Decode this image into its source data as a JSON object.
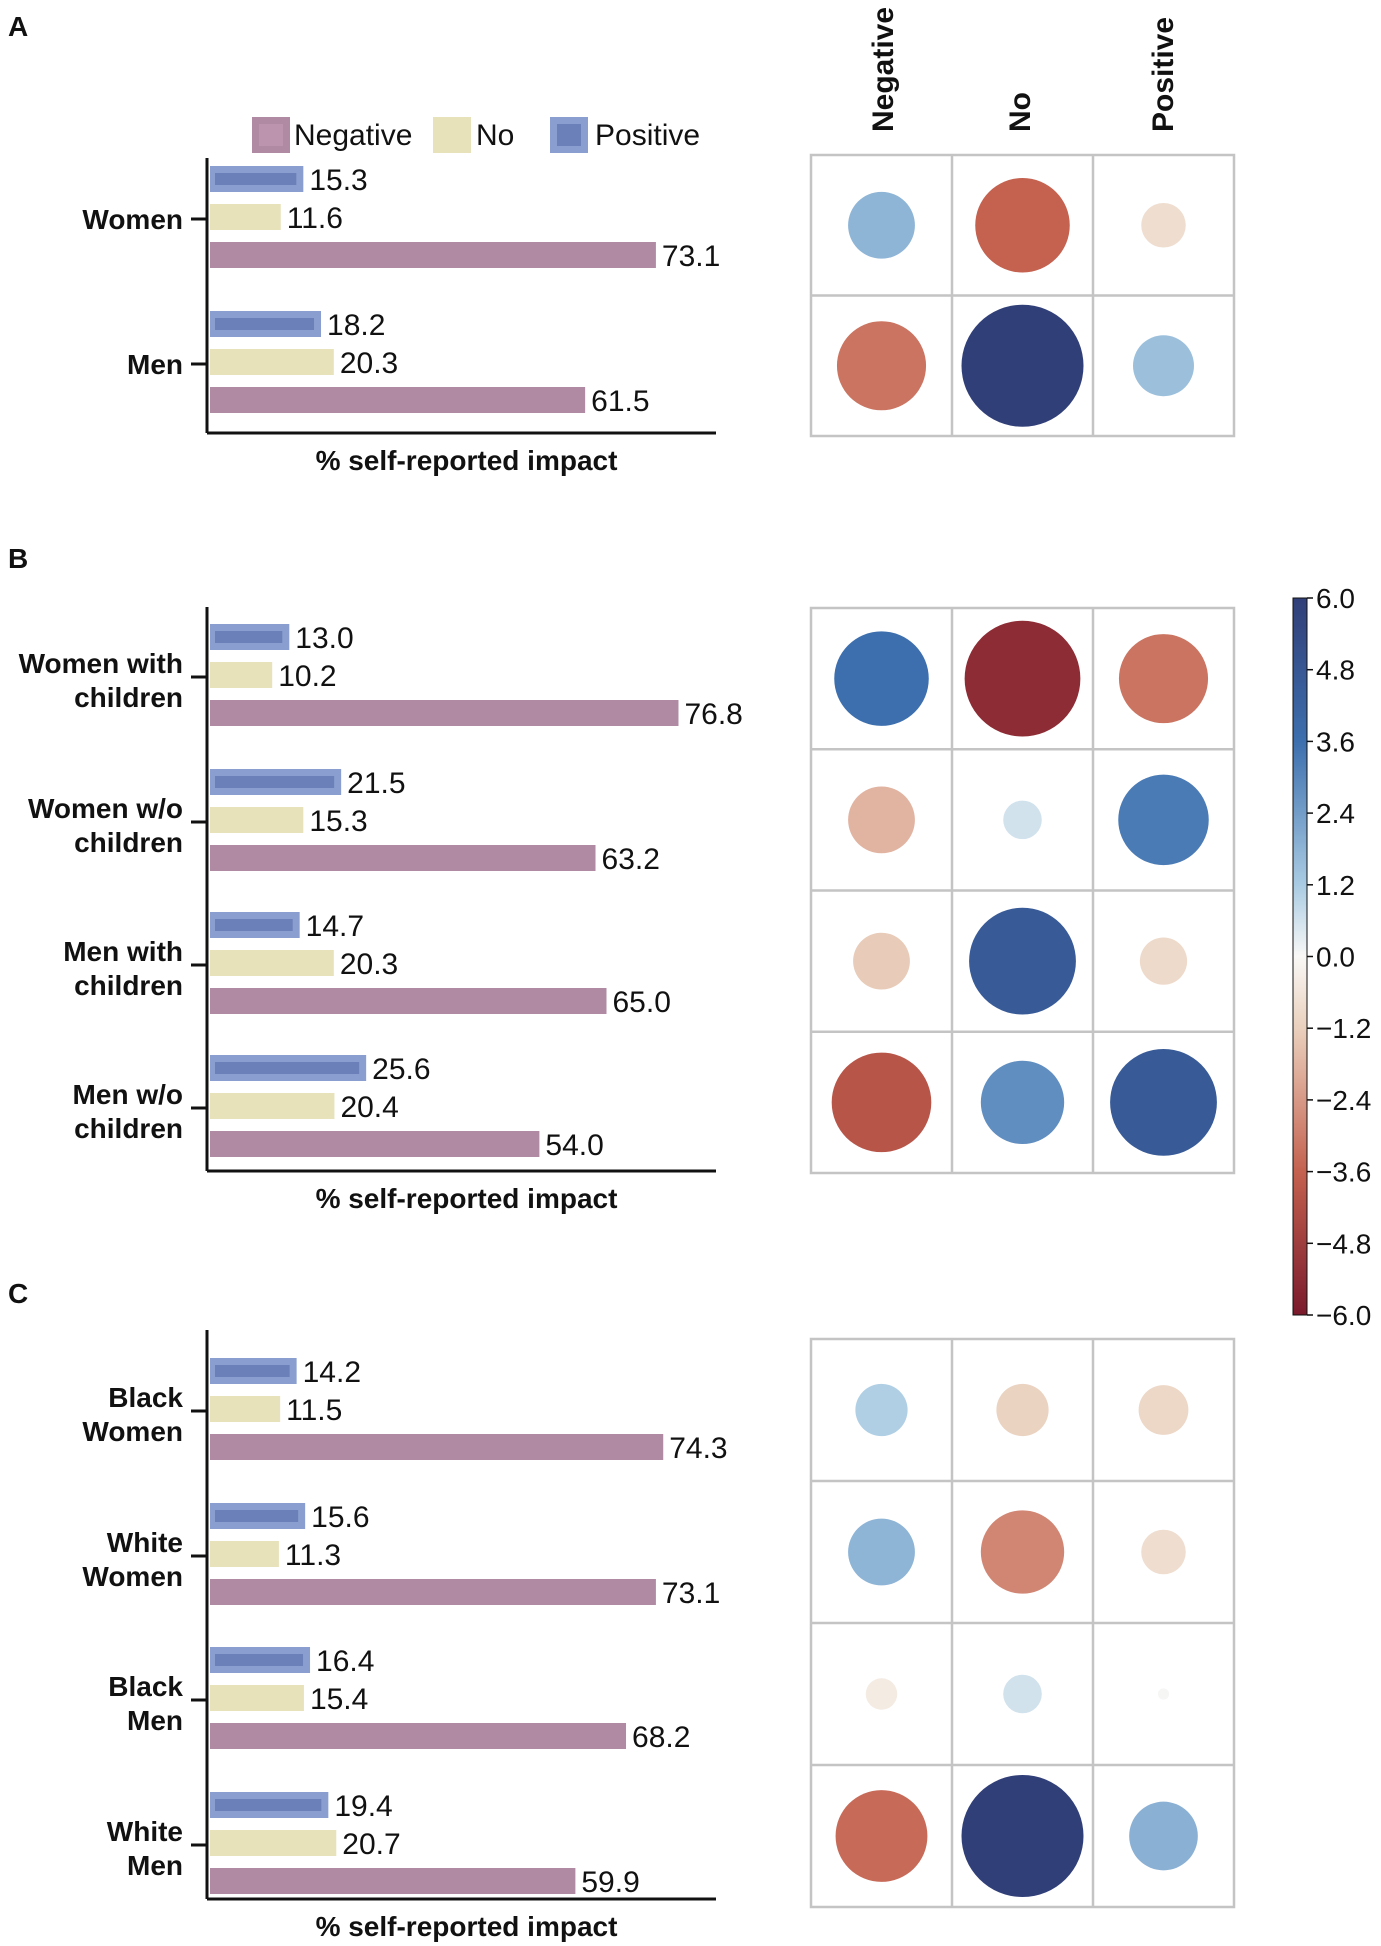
{
  "legend": [
    {
      "key": "negative",
      "label": "Negative"
    },
    {
      "key": "no",
      "label": "No"
    },
    {
      "key": "positive",
      "label": "Positive"
    }
  ],
  "colors": {
    "negative": "#b08aa3",
    "no": "#e8e2bb",
    "positive": "#8a9fcf",
    "positive_inner": "#6b7fb8",
    "grid": "#c4c4c4",
    "axis": "#111111"
  },
  "heatmap_columns": [
    "Negative",
    "No",
    "Positive"
  ],
  "colorbar": {
    "min": -6.0,
    "max": 6.0,
    "ticks": [
      "6.0",
      "4.8",
      "3.6",
      "2.4",
      "1.2",
      "0.0",
      "−1.2",
      "−2.4",
      "−3.6",
      "−4.8",
      "−6.0"
    ]
  },
  "chart_data": [
    {
      "panel": "A",
      "type": "bar",
      "orientation": "horizontal",
      "xlabel": "% self-reported impact",
      "categories": [
        [
          "Women"
        ],
        [
          "Men"
        ]
      ],
      "series": [
        {
          "name": "Positive",
          "values": [
            15.3,
            18.2
          ]
        },
        {
          "name": "No",
          "values": [
            11.6,
            20.3
          ]
        },
        {
          "name": "Negative",
          "values": [
            73.1,
            61.5
          ]
        }
      ],
      "value_labels": {
        "Positive": [
          "15.3",
          "18.2"
        ],
        "No": [
          "11.6",
          "20.3"
        ],
        "Negative": [
          "73.1",
          "61.5"
        ]
      },
      "residuals": {
        "type": "heatmap",
        "columns": [
          "Negative",
          "No",
          "Positive"
        ],
        "values": [
          [
            1.8,
            -3.6,
            -0.8
          ],
          [
            -3.2,
            6.0,
            1.5
          ]
        ]
      }
    },
    {
      "panel": "B",
      "type": "bar",
      "orientation": "horizontal",
      "xlabel": "% self-reported impact",
      "categories": [
        [
          "Women with",
          "children"
        ],
        [
          "Women w/o",
          "children"
        ],
        [
          "Men with",
          "children"
        ],
        [
          "Men w/o",
          "children"
        ]
      ],
      "series": [
        {
          "name": "Positive",
          "values": [
            13.0,
            21.5,
            14.7,
            25.6
          ]
        },
        {
          "name": "No",
          "values": [
            10.2,
            15.3,
            20.3,
            20.4
          ]
        },
        {
          "name": "Negative",
          "values": [
            76.8,
            63.2,
            65.0,
            54.0
          ]
        }
      ],
      "value_labels": {
        "Positive": [
          "13.0",
          "21.5",
          "14.7",
          "25.6"
        ],
        "No": [
          "10.2",
          "15.3",
          "20.3",
          "20.4"
        ],
        "Negative": [
          "76.8",
          "63.2",
          "65.0",
          "54.0"
        ]
      },
      "residuals": {
        "type": "heatmap",
        "columns": [
          "Negative",
          "No",
          "Positive"
        ],
        "values": [
          [
            3.6,
            -5.4,
            -3.2
          ],
          [
            -1.8,
            0.6,
            3.3
          ],
          [
            -1.3,
            4.6,
            -0.9
          ],
          [
            -4.0,
            2.8,
            4.6
          ]
        ]
      }
    },
    {
      "panel": "C",
      "type": "bar",
      "orientation": "horizontal",
      "xlabel": "% self-reported impact",
      "categories": [
        [
          "Black",
          "Women"
        ],
        [
          "White",
          "Women"
        ],
        [
          "Black",
          "Men"
        ],
        [
          "White",
          "Men"
        ]
      ],
      "series": [
        {
          "name": "Positive",
          "values": [
            14.2,
            15.6,
            16.4,
            19.4
          ]
        },
        {
          "name": "No",
          "values": [
            11.5,
            11.3,
            15.4,
            20.7
          ]
        },
        {
          "name": "Negative",
          "values": [
            74.3,
            73.1,
            68.2,
            59.9
          ]
        }
      ],
      "value_labels": {
        "Positive": [
          "14.2",
          "15.6",
          "16.4",
          "19.4"
        ],
        "No": [
          "11.5",
          "11.3",
          "15.4",
          "20.7"
        ],
        "Negative": [
          "74.3",
          "73.1",
          "68.2",
          "59.9"
        ]
      },
      "residuals": {
        "type": "heatmap",
        "columns": [
          "Negative",
          "No",
          "Positive"
        ],
        "values": [
          [
            1.1,
            -1.1,
            -1.0
          ],
          [
            1.8,
            -2.8,
            -0.8
          ],
          [
            -0.4,
            0.6,
            0.05
          ],
          [
            -3.4,
            6.0,
            1.9
          ]
        ]
      }
    }
  ]
}
